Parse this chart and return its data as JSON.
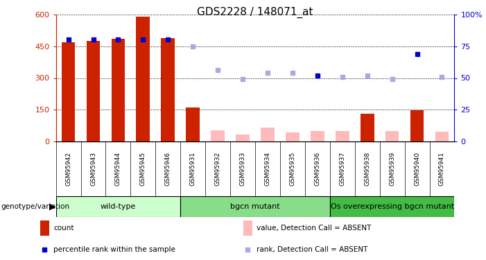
{
  "title": "GDS2228 / 148071_at",
  "samples": [
    "GSM95942",
    "GSM95943",
    "GSM95944",
    "GSM95945",
    "GSM95946",
    "GSM95931",
    "GSM95932",
    "GSM95933",
    "GSM95934",
    "GSM95935",
    "GSM95936",
    "GSM95937",
    "GSM95938",
    "GSM95939",
    "GSM95940",
    "GSM95941"
  ],
  "groups": [
    {
      "name": "wild-type",
      "color": "#ccffcc",
      "start": 0,
      "end": 5
    },
    {
      "name": "bgcn mutant",
      "color": "#88dd88",
      "start": 5,
      "end": 11
    },
    {
      "name": "Os overexpressing bgcn mutant",
      "color": "#44bb44",
      "start": 11,
      "end": 16
    }
  ],
  "count_values": [
    468,
    475,
    485,
    590,
    487,
    162,
    0,
    0,
    0,
    0,
    0,
    0,
    132,
    0,
    148,
    0
  ],
  "count_present": [
    true,
    true,
    true,
    true,
    true,
    true,
    false,
    false,
    false,
    false,
    false,
    false,
    true,
    false,
    true,
    false
  ],
  "absent_bar_values": [
    0,
    0,
    0,
    0,
    0,
    0,
    55,
    35,
    65,
    45,
    50,
    50,
    0,
    50,
    0,
    48
  ],
  "pct_present_vals": [
    80,
    80,
    80,
    80,
    80
  ],
  "pct_present_idx": [
    0,
    1,
    2,
    3,
    4
  ],
  "pct_absent_vals": [
    75,
    56,
    49,
    54,
    54,
    52,
    51,
    52,
    49,
    69,
    51
  ],
  "pct_absent_idx": [
    5,
    6,
    7,
    8,
    9,
    10,
    11,
    12,
    13,
    14,
    15
  ],
  "pct_present_solid_idx": [
    10,
    14
  ],
  "ylim_left": [
    0,
    600
  ],
  "ylim_right": [
    0,
    100
  ],
  "yticks_left": [
    0,
    150,
    300,
    450,
    600
  ],
  "yticks_right": [
    0,
    25,
    50,
    75,
    100
  ],
  "bar_color_present": "#cc2200",
  "bar_color_absent": "#ffbbbb",
  "dot_color_present": "#0000cc",
  "dot_color_absent": "#aaaadd",
  "bg_fig": "#ffffff",
  "bg_plot": "#ffffff",
  "sample_bg": "#d8d8d8",
  "legend_items": [
    {
      "label": "count",
      "color": "#cc2200",
      "type": "bar"
    },
    {
      "label": "percentile rank within the sample",
      "color": "#0000cc",
      "type": "square"
    },
    {
      "label": "value, Detection Call = ABSENT",
      "color": "#ffbbbb",
      "type": "bar"
    },
    {
      "label": "rank, Detection Call = ABSENT",
      "color": "#aaaadd",
      "type": "square"
    }
  ]
}
